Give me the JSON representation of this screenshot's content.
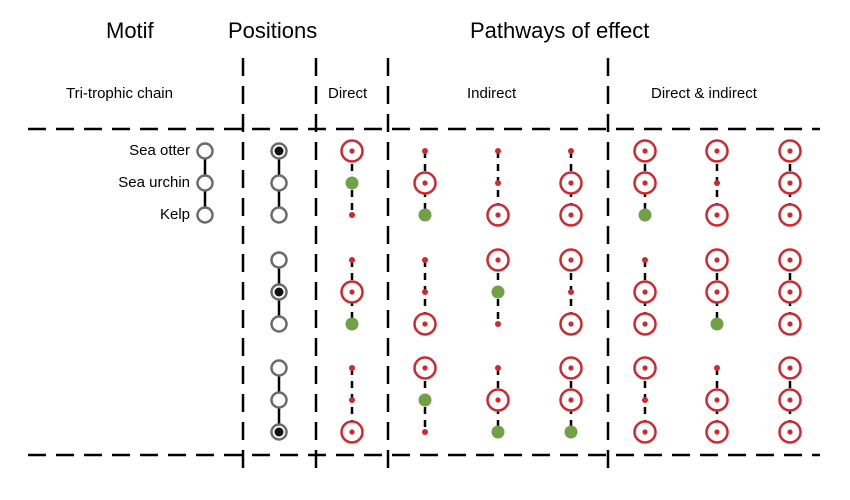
{
  "headers": {
    "motif": "Motif",
    "positions": "Positions",
    "pathways": "Pathways of effect"
  },
  "subheaders": {
    "motif_type": "Tri-trophic chain",
    "direct": "Direct",
    "indirect": "Indirect",
    "direct_indirect": "Direct & indirect"
  },
  "species": [
    "Sea otter",
    "Sea urchin",
    "Kelp"
  ],
  "legend_colors": {
    "affected_target": "#d0282e",
    "unaffected_small_dot": "#d0282e",
    "origin_species": "#72a047",
    "position_marker": "#111111",
    "node_outline": "#6b6b6b"
  },
  "groups": [
    {
      "position": "top",
      "direct": [
        "T",
        "G",
        "D"
      ],
      "indirect": [
        [
          "D",
          "T",
          "G"
        ],
        [
          "D",
          "D",
          "T"
        ],
        [
          "D",
          "T",
          "T"
        ]
      ],
      "direct_indirect": [
        [
          "T",
          "T",
          "G"
        ],
        [
          "T",
          "D",
          "T"
        ],
        [
          "T",
          "T",
          "T"
        ]
      ]
    },
    {
      "position": "middle",
      "direct": [
        "D",
        "T",
        "G"
      ],
      "indirect": [
        [
          "D",
          "D",
          "T"
        ],
        [
          "T",
          "G",
          "D"
        ],
        [
          "T",
          "D",
          "T"
        ]
      ],
      "direct_indirect": [
        [
          "D",
          "T",
          "T"
        ],
        [
          "T",
          "T",
          "G"
        ],
        [
          "T",
          "T",
          "T"
        ]
      ]
    },
    {
      "position": "bottom",
      "direct": [
        "D",
        "D",
        "T"
      ],
      "indirect": [
        [
          "T",
          "G",
          "D"
        ],
        [
          "D",
          "T",
          "G"
        ],
        [
          "T",
          "T",
          "G"
        ]
      ],
      "direct_indirect": [
        [
          "T",
          "D",
          "T"
        ],
        [
          "D",
          "T",
          "T"
        ],
        [
          "T",
          "T",
          "T"
        ]
      ]
    }
  ]
}
